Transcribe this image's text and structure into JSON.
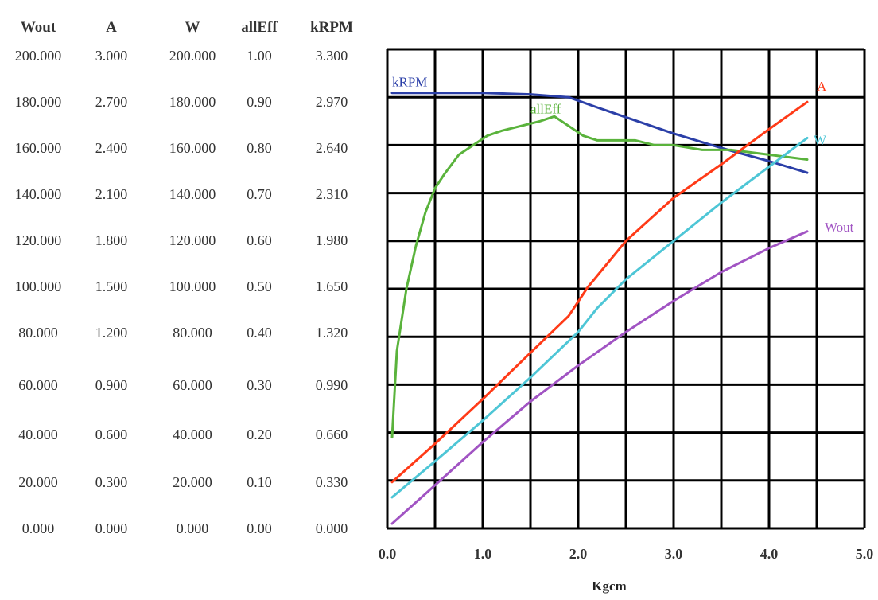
{
  "chart_data": {
    "type": "line",
    "xlabel": "Kgcm",
    "x_ticks": [
      "0.0",
      "1.0",
      "2.0",
      "3.0",
      "4.0",
      "5.0"
    ],
    "xlim": [
      0,
      5
    ],
    "grid": true,
    "legend": "inline labels at line ends",
    "axis_headers": [
      "Wout",
      "A",
      "W",
      "allEff",
      "kRPM"
    ],
    "axis_columns": [
      [
        "200.000",
        "180.000",
        "160.000",
        "140.000",
        "120.000",
        "100.000",
        "80.000",
        "60.000",
        "40.000",
        "20.000",
        "0.000"
      ],
      [
        "3.000",
        "2.700",
        "2.400",
        "2.100",
        "1.800",
        "1.500",
        "1.200",
        "0.900",
        "0.600",
        "0.300",
        "0.000"
      ],
      [
        "200.000",
        "180.000",
        "160.000",
        "140.000",
        "120.000",
        "100.000",
        "80.000",
        "60.000",
        "40.000",
        "20.000",
        "0.000"
      ],
      [
        "1.00",
        "0.90",
        "0.80",
        "0.70",
        "0.60",
        "0.50",
        "0.40",
        "0.30",
        "0.20",
        "0.10",
        "0.00"
      ],
      [
        "3.300",
        "2.970",
        "2.640",
        "2.310",
        "1.980",
        "1.650",
        "1.320",
        "0.990",
        "0.660",
        "0.330",
        "0.000"
      ]
    ],
    "series": [
      {
        "name": "kRPM",
        "axis": "kRPM",
        "ymax": 3.3,
        "color": "#2b3fa8",
        "x": [
          0.05,
          1.0,
          1.5,
          1.9,
          2.2,
          2.6,
          3.0,
          3.5,
          4.0,
          4.4
        ],
        "y": [
          3.0,
          3.0,
          2.99,
          2.97,
          2.9,
          2.81,
          2.72,
          2.62,
          2.53,
          2.45
        ]
      },
      {
        "name": "allEff",
        "axis": "allEff",
        "ymax": 1.0,
        "color": "#5ab33c",
        "x": [
          0.05,
          0.1,
          0.2,
          0.3,
          0.4,
          0.5,
          0.6,
          0.75,
          0.9,
          1.05,
          1.2,
          1.4,
          1.6,
          1.75,
          1.9,
          2.05,
          2.2,
          2.35,
          2.6,
          2.8,
          3.0,
          3.3,
          3.6,
          4.0,
          4.4
        ],
        "y": [
          0.19,
          0.37,
          0.5,
          0.59,
          0.66,
          0.71,
          0.74,
          0.78,
          0.8,
          0.82,
          0.83,
          0.84,
          0.85,
          0.86,
          0.84,
          0.82,
          0.81,
          0.81,
          0.81,
          0.8,
          0.8,
          0.79,
          0.79,
          0.78,
          0.77
        ]
      },
      {
        "name": "A",
        "axis": "A",
        "ymax": 3.0,
        "color": "#ff3a17",
        "x": [
          0.05,
          0.5,
          1.0,
          1.5,
          1.9,
          2.1,
          2.5,
          3.0,
          3.5,
          4.0,
          4.4
        ],
        "y": [
          0.29,
          0.53,
          0.81,
          1.1,
          1.33,
          1.51,
          1.8,
          2.07,
          2.28,
          2.5,
          2.67
        ]
      },
      {
        "name": "W",
        "axis": "W",
        "ymax": 200.0,
        "color": "#4ec6d6",
        "x": [
          0.05,
          0.5,
          1.0,
          1.5,
          2.0,
          2.2,
          2.5,
          3.0,
          3.5,
          4.0,
          4.4
        ],
        "y": [
          13.0,
          28.0,
          45.0,
          63.0,
          82.0,
          92.0,
          104.0,
          120.0,
          136.0,
          151.0,
          163.0
        ]
      },
      {
        "name": "Wout",
        "axis": "Wout",
        "ymax": 200.0,
        "color": "#a154c3",
        "x": [
          0.05,
          0.5,
          1.0,
          1.5,
          2.0,
          2.5,
          3.0,
          3.5,
          4.0,
          4.4
        ],
        "y": [
          2.0,
          18.0,
          36.0,
          53.0,
          68.0,
          82.0,
          95.0,
          107.0,
          117.0,
          124.0
        ]
      }
    ]
  }
}
